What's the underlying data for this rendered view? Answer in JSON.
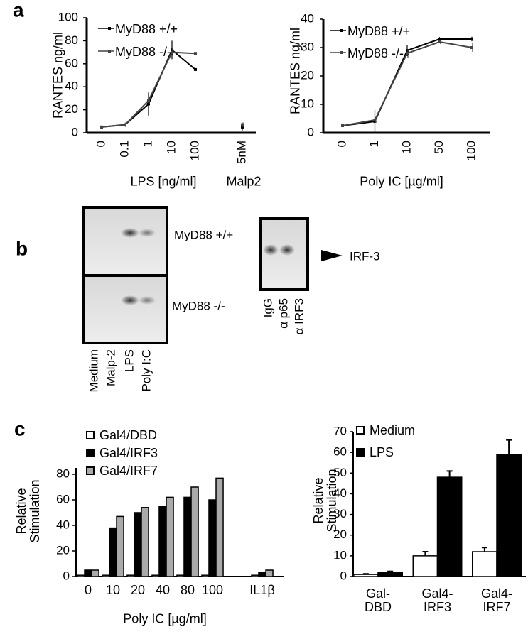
{
  "panel_labels": [
    "a",
    "b",
    "c"
  ],
  "gel": {
    "rows": [
      "MyD88 +/+",
      "MyD88 -/-"
    ],
    "lanes": [
      "Medium",
      "Malp-2",
      "LPS",
      "Poly I:C"
    ],
    "supershift_lanes": [
      "IgG",
      "α p65",
      "α IRF3"
    ],
    "band_label": "IRF-3"
  },
  "chart_data": [
    {
      "type": "line",
      "ylabel": "RANTES ng/ml",
      "xlabel": "LPS [ng/ml]",
      "annotation": "Malp2",
      "categories": [
        "0",
        "0.1",
        "1",
        "10",
        "100",
        null,
        "5nM"
      ],
      "ylim": [
        0,
        100
      ],
      "yticks": [
        0,
        20,
        40,
        60,
        80,
        100
      ],
      "series": [
        {
          "name": "MyD88 +/+",
          "color": "#000000",
          "values": [
            5,
            7,
            25,
            72,
            55,
            null,
            5
          ],
          "errors": [
            null,
            null,
            10,
            8,
            null,
            null,
            3
          ]
        },
        {
          "name": "MyD88 -/-",
          "color": "#444444",
          "values": [
            5,
            7,
            28,
            70,
            69,
            null,
            7
          ],
          "errors": [
            null,
            2,
            3,
            3,
            null,
            null,
            2
          ]
        }
      ]
    },
    {
      "type": "line",
      "ylabel": "RANTES ng/ml",
      "xlabel": "Poly IC [µg/ml]",
      "categories": [
        "0",
        "1",
        "10",
        "50",
        "100"
      ],
      "ylim": [
        0,
        40
      ],
      "yticks": [
        0,
        10,
        20,
        30,
        40
      ],
      "series": [
        {
          "name": "MyD88 +/+",
          "color": "#000000",
          "values": [
            2.5,
            4,
            29,
            33,
            33
          ],
          "errors": [
            0.5,
            4,
            2,
            0.7,
            0.8
          ]
        },
        {
          "name": "MyD88 -/-",
          "color": "#444444",
          "values": [
            2.5,
            4.5,
            28,
            32,
            30
          ],
          "errors": [
            0.5,
            1,
            1.5,
            0.7,
            1.5
          ]
        }
      ]
    },
    {
      "type": "bar",
      "ylabel": "Relative\nStimulation",
      "xlabel": "Poly IC [µg/ml]",
      "categories": [
        "0",
        "10",
        "20",
        "40",
        "80",
        "100",
        null,
        "IL1β"
      ],
      "ylim": [
        0,
        85
      ],
      "yticks": [
        0,
        20,
        40,
        60,
        80
      ],
      "series": [
        {
          "name": "Gal4/DBD",
          "color": "#ffffff",
          "values": [
            1,
            1,
            1,
            1,
            1,
            1,
            null,
            1
          ]
        },
        {
          "name": "Gal4/IRF3",
          "color": "#000000",
          "values": [
            5,
            38,
            50,
            55,
            62,
            60,
            null,
            3
          ]
        },
        {
          "name": "Gal4/IRF7",
          "color": "#aaaaaa",
          "values": [
            5,
            47,
            54,
            62,
            70,
            77,
            null,
            5
          ]
        }
      ]
    },
    {
      "type": "bar",
      "ylabel": "Relative\nStimulation",
      "categories": [
        "Gal-\nDBD",
        "Gal4-\nIRF3",
        "Gal4-\nIRF7"
      ],
      "ylim": [
        0,
        70
      ],
      "yticks": [
        0,
        10,
        20,
        30,
        40,
        50,
        60,
        70
      ],
      "series": [
        {
          "name": "Medium",
          "color": "#ffffff",
          "values": [
            1,
            10,
            12
          ],
          "errors": [
            0.3,
            2,
            2
          ]
        },
        {
          "name": "LPS",
          "color": "#000000",
          "values": [
            2,
            48,
            59
          ],
          "errors": [
            0.5,
            3,
            7
          ]
        }
      ]
    }
  ]
}
